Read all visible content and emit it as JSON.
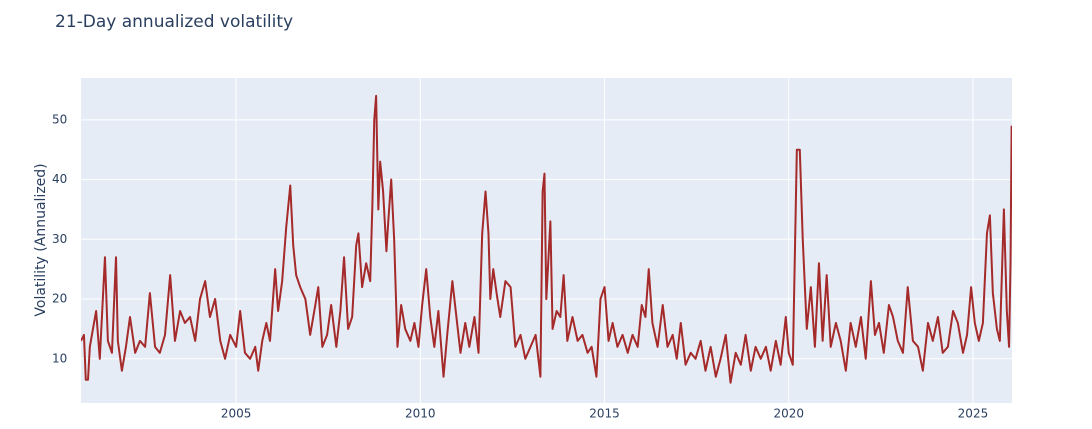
{
  "chart_data": {
    "type": "line",
    "title": "21-Day annualized volatility",
    "y_label": "Volatility (Annualized)",
    "color": "#a52a2a",
    "grid": true,
    "xlim": [
      2000.79,
      2026.06
    ],
    "xticks": [
      2005,
      2010,
      2015,
      2020,
      2025
    ],
    "ylim": [
      2.6,
      57
    ],
    "yticks": [
      10,
      20,
      30,
      40,
      50
    ],
    "x": [
      2000.79,
      2000.87,
      2000.92,
      2000.98,
      2001.03,
      2001.2,
      2001.3,
      2001.44,
      2001.52,
      2001.63,
      2001.74,
      2001.79,
      2001.9,
      2002.01,
      2002.12,
      2002.26,
      2002.39,
      2002.53,
      2002.66,
      2002.8,
      2002.93,
      2003.07,
      2003.21,
      2003.34,
      2003.48,
      2003.61,
      2003.75,
      2003.89,
      2004.02,
      2004.16,
      2004.29,
      2004.43,
      2004.57,
      2004.7,
      2004.84,
      2005.0,
      2005.11,
      2005.24,
      2005.38,
      2005.52,
      2005.6,
      2005.71,
      2005.82,
      2005.92,
      2006.06,
      2006.14,
      2006.25,
      2006.36,
      2006.47,
      2006.55,
      2006.63,
      2006.74,
      2006.88,
      2007.01,
      2007.15,
      2007.23,
      2007.34,
      2007.47,
      2007.58,
      2007.72,
      2007.83,
      2007.93,
      2008.04,
      2008.15,
      2008.26,
      2008.32,
      2008.42,
      2008.53,
      2008.64,
      2008.7,
      2008.75,
      2008.8,
      2008.86,
      2008.91,
      2008.99,
      2009.08,
      2009.13,
      2009.21,
      2009.29,
      2009.38,
      2009.48,
      2009.59,
      2009.73,
      2009.84,
      2009.95,
      2010.05,
      2010.16,
      2010.27,
      2010.38,
      2010.49,
      2010.63,
      2010.73,
      2010.87,
      2010.98,
      2011.09,
      2011.22,
      2011.33,
      2011.47,
      2011.58,
      2011.68,
      2011.77,
      2011.85,
      2011.9,
      2011.98,
      2012.07,
      2012.17,
      2012.31,
      2012.45,
      2012.58,
      2012.72,
      2012.85,
      2012.99,
      2013.13,
      2013.26,
      2013.32,
      2013.37,
      2013.42,
      2013.53,
      2013.59,
      2013.7,
      2013.8,
      2013.89,
      2013.99,
      2014.13,
      2014.27,
      2014.4,
      2014.54,
      2014.65,
      2014.78,
      2014.89,
      2015.0,
      2015.11,
      2015.22,
      2015.35,
      2015.49,
      2015.63,
      2015.76,
      2015.9,
      2016.01,
      2016.11,
      2016.2,
      2016.3,
      2016.44,
      2016.58,
      2016.71,
      2016.85,
      2016.96,
      2017.07,
      2017.2,
      2017.34,
      2017.47,
      2017.61,
      2017.74,
      2017.88,
      2018.02,
      2018.15,
      2018.29,
      2018.42,
      2018.56,
      2018.7,
      2018.83,
      2018.97,
      2019.1,
      2019.24,
      2019.38,
      2019.51,
      2019.65,
      2019.78,
      2019.92,
      2020.0,
      2020.11,
      2020.22,
      2020.3,
      2020.38,
      2020.49,
      2020.6,
      2020.71,
      2020.82,
      2020.92,
      2021.03,
      2021.14,
      2021.28,
      2021.41,
      2021.55,
      2021.68,
      2021.82,
      2021.96,
      2022.09,
      2022.23,
      2022.34,
      2022.45,
      2022.58,
      2022.72,
      2022.83,
      2022.96,
      2023.1,
      2023.23,
      2023.37,
      2023.51,
      2023.64,
      2023.78,
      2023.91,
      2024.05,
      2024.18,
      2024.32,
      2024.46,
      2024.59,
      2024.73,
      2024.84,
      2024.95,
      2025.05,
      2025.16,
      2025.27,
      2025.38,
      2025.46,
      2025.54,
      2025.65,
      2025.73,
      2025.84,
      2025.92,
      2025.98,
      2026.02,
      2026.05
    ],
    "values": [
      13,
      14,
      6.5,
      6.5,
      12,
      18,
      10,
      27,
      13,
      11,
      27,
      13,
      8,
      12,
      17,
      11,
      13,
      12,
      21,
      12,
      11,
      14,
      24,
      13,
      18,
      16,
      17,
      13,
      20,
      23,
      17,
      20,
      13,
      10,
      14,
      12,
      18,
      11,
      10,
      12,
      8,
      13,
      16,
      13,
      25,
      18,
      23,
      32,
      39,
      29,
      24,
      22,
      20,
      14,
      19,
      22,
      12,
      14,
      19,
      12,
      18,
      27,
      15,
      17,
      29,
      31,
      22,
      26,
      23,
      36,
      50,
      54,
      35,
      43,
      38,
      28,
      33,
      40,
      30,
      12,
      19,
      15,
      13,
      16,
      12,
      19,
      25,
      17,
      12,
      18,
      7,
      14,
      23,
      17,
      11,
      16,
      12,
      17,
      11,
      31,
      38,
      31,
      20,
      25,
      21,
      17,
      23,
      22,
      12,
      14,
      10,
      12,
      14,
      7,
      38,
      41,
      20,
      33,
      15,
      18,
      17,
      24,
      13,
      17,
      13,
      14,
      11,
      12,
      7,
      20,
      22,
      13,
      16,
      12,
      14,
      11,
      14,
      12,
      19,
      17,
      25,
      16,
      12,
      19,
      12,
      14,
      10,
      16,
      9,
      11,
      10,
      13,
      8,
      12,
      7,
      10,
      14,
      6,
      11,
      9,
      14,
      8,
      12,
      10,
      12,
      8,
      13,
      9,
      17,
      11,
      9,
      45,
      45,
      30,
      15,
      22,
      12,
      26,
      13,
      24,
      12,
      16,
      13,
      8,
      16,
      12,
      17,
      10,
      23,
      14,
      16,
      11,
      19,
      17,
      13,
      11,
      22,
      13,
      12,
      8,
      16,
      13,
      17,
      11,
      12,
      18,
      16,
      11,
      14,
      22,
      16,
      13,
      16,
      31,
      34,
      21,
      15,
      13,
      35,
      18,
      12,
      26,
      49
    ]
  }
}
